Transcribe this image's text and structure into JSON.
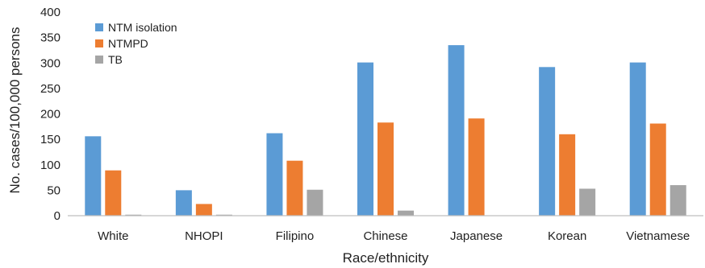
{
  "chart_data": {
    "type": "bar",
    "title": "",
    "xlabel": "Race/ethnicity",
    "ylabel": "No. cases/100,000 persons",
    "ylim": [
      0,
      400
    ],
    "yticks": [
      0,
      50,
      100,
      150,
      200,
      250,
      300,
      350,
      400
    ],
    "grid": false,
    "legend_position": "top-left",
    "categories": [
      "White",
      "NHOPI",
      "Filipino",
      "Chinese",
      "Japanese",
      "Korean",
      "Vietnamese"
    ],
    "series": [
      {
        "name": "NTM isolation",
        "color": "#5b9bd5",
        "values": [
          156,
          50,
          162,
          301,
          335,
          292,
          301
        ]
      },
      {
        "name": "NTMPD",
        "color": "#ed7d31",
        "values": [
          89,
          23,
          108,
          183,
          191,
          160,
          181
        ]
      },
      {
        "name": "TB",
        "color": "#a5a5a5",
        "values": [
          2,
          2,
          51,
          10,
          0,
          53,
          60
        ]
      }
    ]
  }
}
